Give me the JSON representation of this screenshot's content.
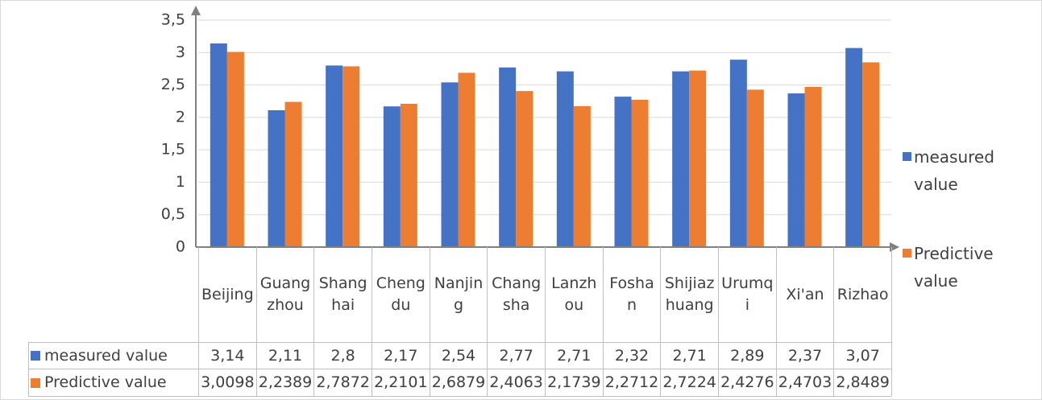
{
  "chart_data": {
    "type": "bar",
    "categories": [
      "Beijing",
      "Guangzhou",
      "Shanghai",
      "Chengdu",
      "Nanjing",
      "Changsha",
      "Lanzhou",
      "Foshan",
      "Shijiazhuang",
      "Urumqi",
      "Xi'an",
      "Rizhao"
    ],
    "series": [
      {
        "name": "measured value",
        "color": "#4472c4",
        "values": [
          3.14,
          2.11,
          2.8,
          2.17,
          2.54,
          2.77,
          2.71,
          2.32,
          2.71,
          2.89,
          2.37,
          3.07
        ],
        "value_labels": [
          "3,14",
          "2,11",
          "2,8",
          "2,17",
          "2,54",
          "2,77",
          "2,71",
          "2,32",
          "2,71",
          "2,89",
          "2,37",
          "3,07"
        ]
      },
      {
        "name": "Predictive value",
        "color": "#ed7d31",
        "values": [
          3.0098,
          2.2389,
          2.7872,
          2.2101,
          2.6879,
          2.4063,
          2.1739,
          2.2712,
          2.7224,
          2.4276,
          2.4703,
          2.8489
        ],
        "value_labels": [
          "3,0098",
          "2,2389",
          "2,7872",
          "2,2101",
          "2,6879",
          "2,4063",
          "2,1739",
          "2,2712",
          "2,7224",
          "2,4276",
          "2,4703",
          "2,8489"
        ]
      }
    ],
    "ylim": [
      0,
      3.5
    ],
    "yticks": [
      0,
      {
        "value": 0.5,
        "label": "0,5"
      },
      1,
      {
        "value": 1.5,
        "label": "1,5"
      },
      2,
      {
        "value": 2.5,
        "label": "2,5"
      },
      3,
      {
        "value": 3.5,
        "label": "3,5"
      }
    ],
    "grid": true,
    "legend": "right",
    "data_table": true
  }
}
